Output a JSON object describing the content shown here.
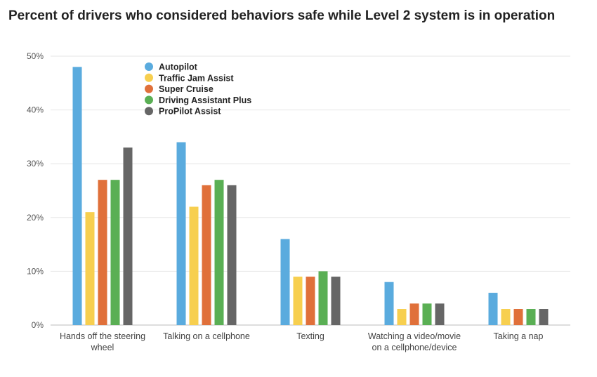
{
  "chart_data": {
    "type": "bar",
    "title": "Percent of drivers who considered behaviors safe while Level 2 system is in operation",
    "xlabel": "",
    "ylabel": "",
    "ylim": [
      0,
      50
    ],
    "yticks": [
      "0%",
      "10%",
      "20%",
      "30%",
      "40%",
      "50%"
    ],
    "ytick_values": [
      0,
      10,
      20,
      30,
      40,
      50
    ],
    "grid": true,
    "legend_position": "top-left",
    "categories": [
      [
        "Hands off the steering",
        "wheel"
      ],
      [
        "Talking on a cellphone"
      ],
      [
        "Texting"
      ],
      [
        "Watching a video/movie",
        "on a cellphone/device"
      ],
      [
        "Taking a nap"
      ]
    ],
    "series": [
      {
        "name": "Autopilot",
        "color": "#5aabde",
        "values": [
          48,
          34,
          16,
          8,
          6
        ]
      },
      {
        "name": "Traffic Jam Assist",
        "color": "#f7cf4f",
        "values": [
          21,
          22,
          9,
          3,
          3
        ]
      },
      {
        "name": "Super Cruise",
        "color": "#e0703a",
        "values": [
          27,
          26,
          9,
          4,
          3
        ]
      },
      {
        "name": "Driving Assistant Plus",
        "color": "#5aaf54",
        "values": [
          27,
          27,
          10,
          4,
          3
        ]
      },
      {
        "name": "ProPilot Assist",
        "color": "#666666",
        "values": [
          33,
          26,
          9,
          4,
          3
        ]
      }
    ]
  }
}
